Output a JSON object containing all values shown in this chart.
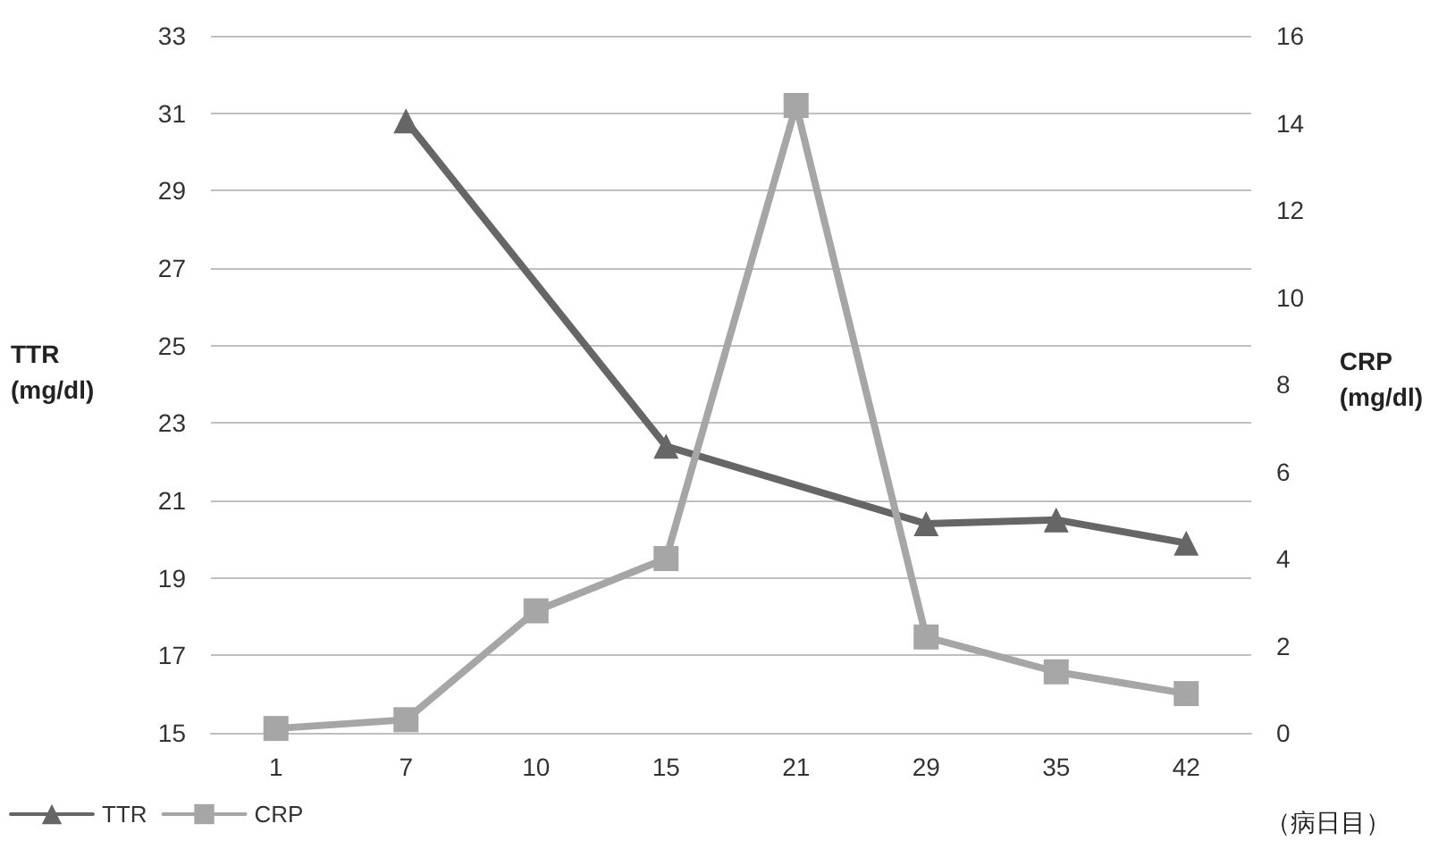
{
  "chart_data": {
    "type": "line",
    "xlabel": "（病日目）",
    "ylabel": "TTR\n(mg/dl)",
    "y2label": "CRP\n(mg/dl)",
    "categories": [
      "1",
      "7",
      "10",
      "15",
      "21",
      "29",
      "35",
      "42"
    ],
    "series": [
      {
        "name": "TTR",
        "color": "#666666",
        "marker": "triangle",
        "values": [
          null,
          30.8,
          null,
          22.4,
          null,
          20.4,
          20.5,
          19.9
        ]
      },
      {
        "name": "CRP",
        "color": "#a6a6a6",
        "marker": "square",
        "axis": "y2",
        "values": [
          0.1,
          0.3,
          2.8,
          4.0,
          14.4,
          2.2,
          1.4,
          0.9
        ]
      }
    ],
    "ylim": [
      15,
      33
    ],
    "yticks": [
      15,
      17,
      19,
      21,
      23,
      25,
      27,
      29,
      31,
      33
    ],
    "y2lim": [
      0,
      16
    ],
    "y2ticks": [
      0,
      2,
      4,
      6,
      8,
      10,
      12,
      14,
      16
    ],
    "grid": "y",
    "legend": "bottom left",
    "line_style": "solid"
  }
}
